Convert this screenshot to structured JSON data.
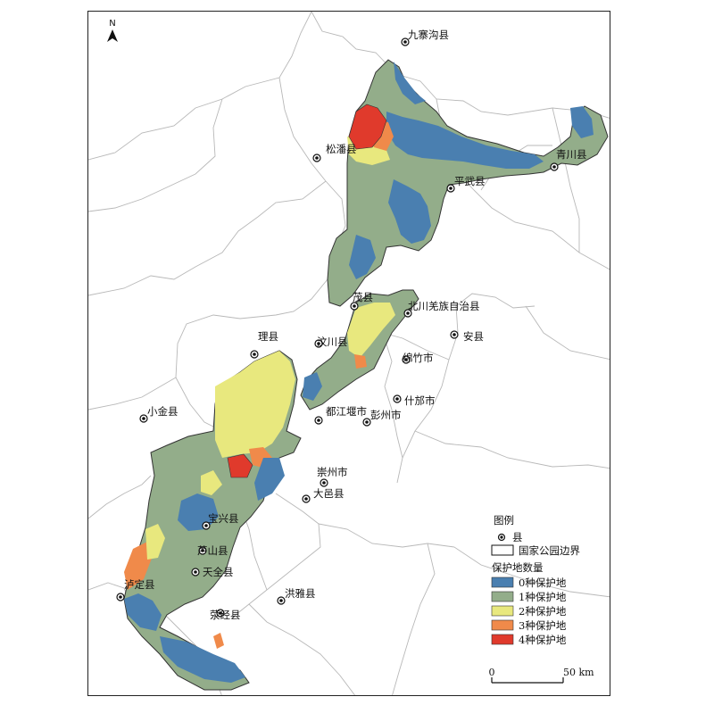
{
  "north_label": "N",
  "counties": [
    {
      "id": "jiuzhaigou",
      "label": "九寨沟县"
    },
    {
      "id": "songpan",
      "label": "松潘县"
    },
    {
      "id": "qingchuan",
      "label": "青川县"
    },
    {
      "id": "pingwu",
      "label": "平武县"
    },
    {
      "id": "maoxian",
      "label": "茂县"
    },
    {
      "id": "beichuan",
      "label": "北川羌族自治县"
    },
    {
      "id": "anxian",
      "label": "安县"
    },
    {
      "id": "lixian",
      "label": "理县"
    },
    {
      "id": "wenchuan",
      "label": "汶川县"
    },
    {
      "id": "mianzhu",
      "label": "绵竹市"
    },
    {
      "id": "shifang",
      "label": "什邡市"
    },
    {
      "id": "xiaojin",
      "label": "小金县"
    },
    {
      "id": "dujiangyan",
      "label": "都江堰市"
    },
    {
      "id": "pengzhou",
      "label": "彭州市"
    },
    {
      "id": "chongzhou",
      "label": "崇州市"
    },
    {
      "id": "dayi",
      "label": "大邑县"
    },
    {
      "id": "baoxing",
      "label": "宝兴县"
    },
    {
      "id": "lushan",
      "label": "芦山县"
    },
    {
      "id": "tianquan",
      "label": "天全县"
    },
    {
      "id": "luding",
      "label": "泸定县"
    },
    {
      "id": "hongya",
      "label": "洪雅县"
    },
    {
      "id": "yingjing",
      "label": "荥经县"
    }
  ],
  "legend": {
    "title": "图例",
    "county_symbol_label": "县",
    "boundary_label": "国家公园边界",
    "classes_title": "保护地数量",
    "classes": [
      {
        "label": "0种保护地",
        "color": "#4a7fb0"
      },
      {
        "label": "1种保护地",
        "color": "#93ad8a"
      },
      {
        "label": "2种保护地",
        "color": "#e8e87e"
      },
      {
        "label": "3种保护地",
        "color": "#f08a4a"
      },
      {
        "label": "4种保护地",
        "color": "#e03a2c"
      }
    ]
  },
  "scale_bar": {
    "start_label": "0",
    "end_label": "50 km"
  }
}
